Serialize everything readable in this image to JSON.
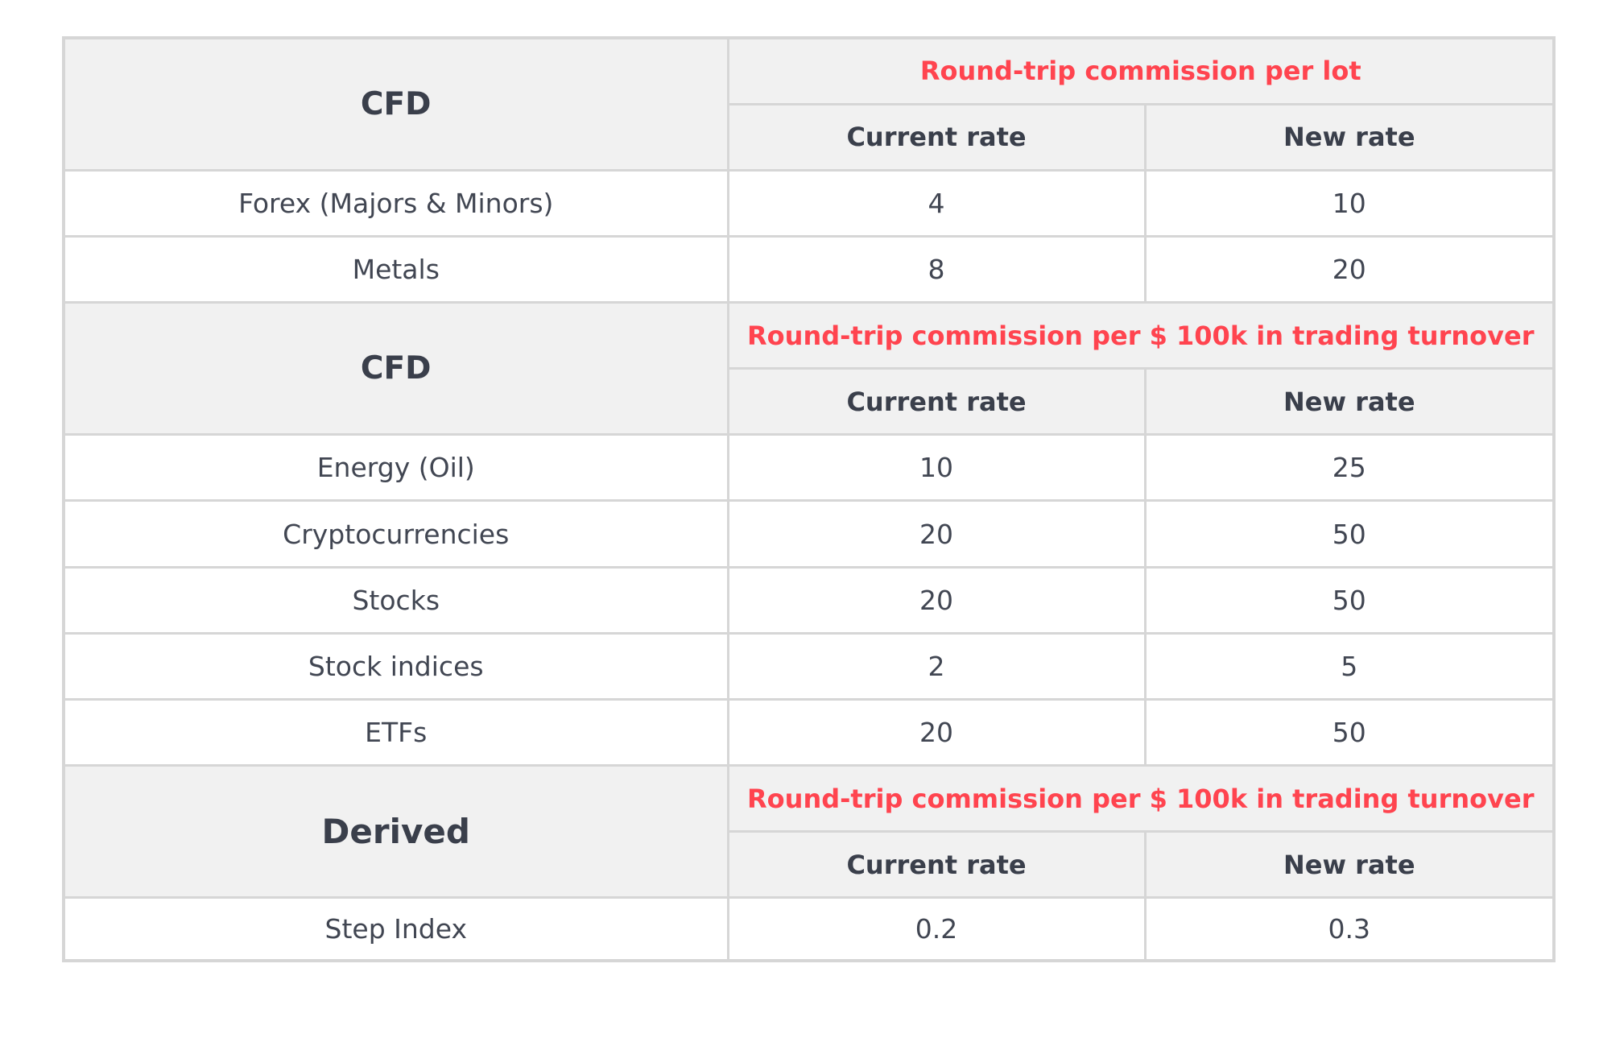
{
  "sections": [
    {
      "label": "CFD",
      "commission_title": "Round-trip commission per lot",
      "columns": [
        "Current rate",
        "New rate"
      ],
      "rows": [
        {
          "instrument": "Forex (Majors & Minors)",
          "current": "4",
          "new": "10"
        },
        {
          "instrument": "Metals",
          "current": "8",
          "new": "20"
        }
      ]
    },
    {
      "label": "CFD",
      "commission_title": "Round-trip commission per $ 100k in trading turnover",
      "columns": [
        "Current rate",
        "New rate"
      ],
      "rows": [
        {
          "instrument": "Energy (Oil)",
          "current": "10",
          "new": "25"
        },
        {
          "instrument": "Cryptocurrencies",
          "current": "20",
          "new": "50"
        },
        {
          "instrument": "Stocks",
          "current": "20",
          "new": "50"
        },
        {
          "instrument": "Stock indices",
          "current": "2",
          "new": "5"
        },
        {
          "instrument": "ETFs",
          "current": "20",
          "new": "50"
        }
      ]
    },
    {
      "label": "Derived",
      "commission_title": "Round-trip commission per $ 100k in trading turnover",
      "columns": [
        "Current rate",
        "New rate"
      ],
      "rows": [
        {
          "instrument": "Step Index",
          "current": "0.2",
          "new": "0.3"
        }
      ]
    }
  ],
  "colors": {
    "accent_red": "#ff444f",
    "header_bg": "#f1f1f1",
    "border": "#d6d6d6",
    "text": "#414652"
  }
}
